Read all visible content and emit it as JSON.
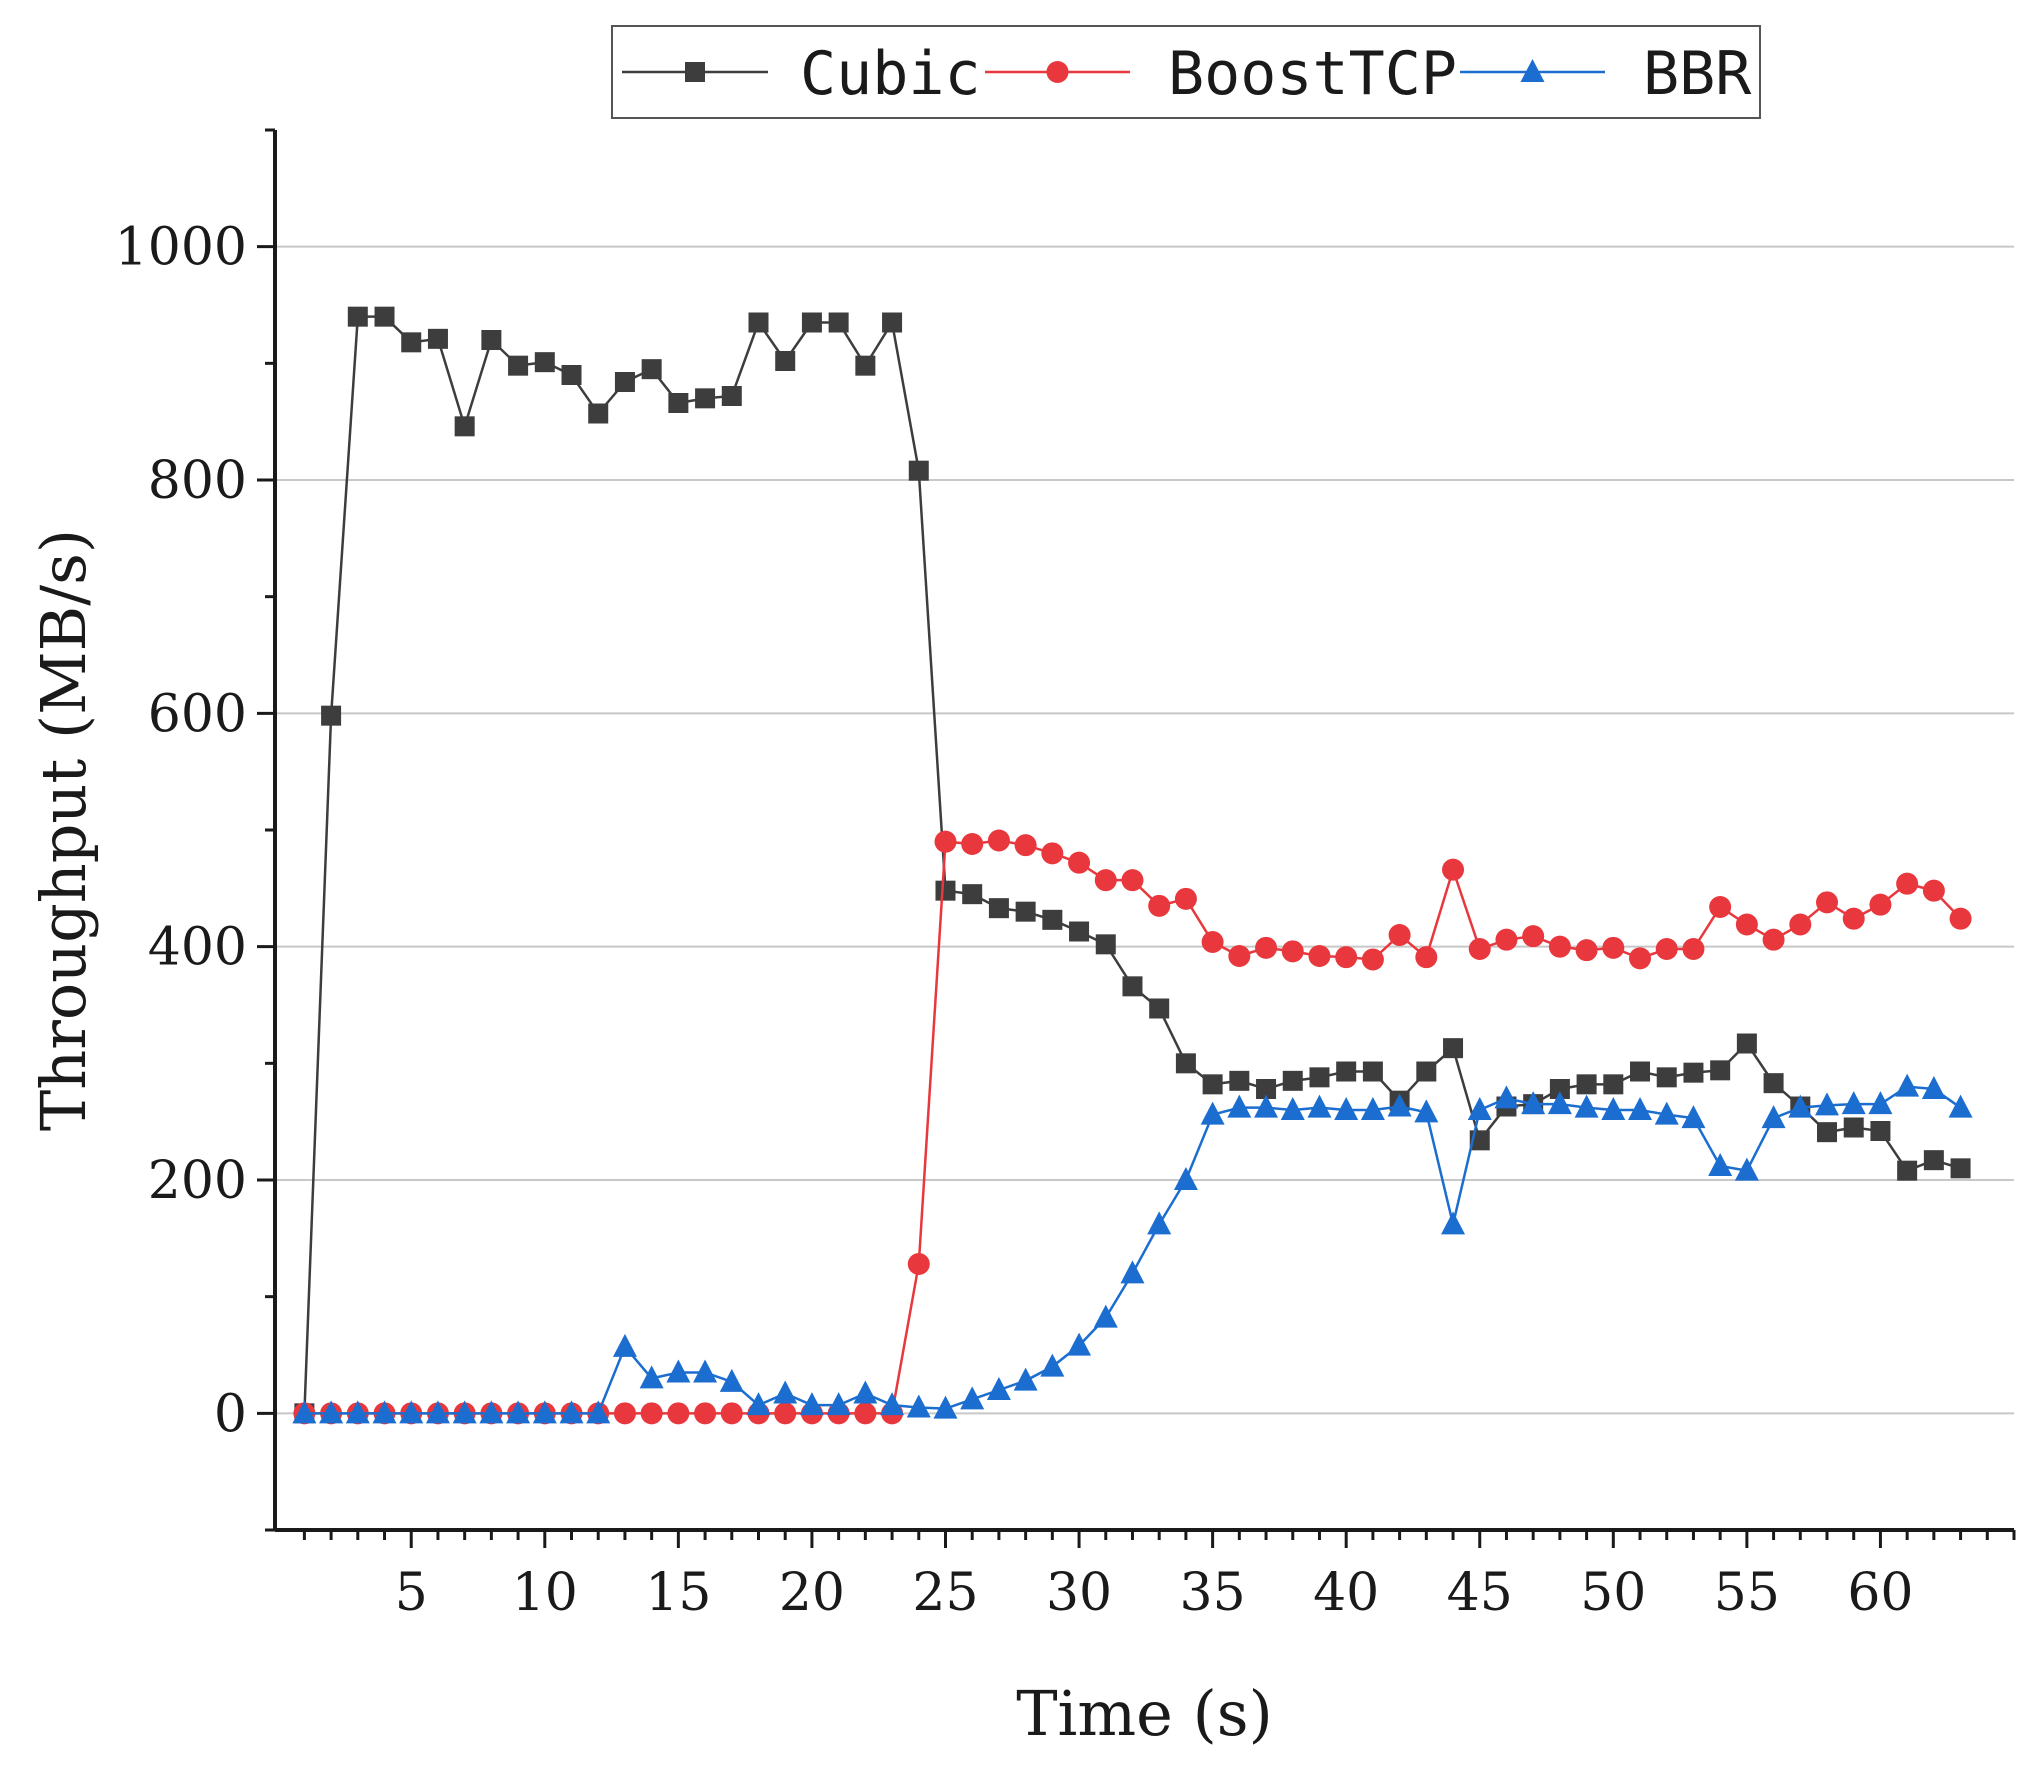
{
  "chart_data": {
    "type": "line",
    "title": "",
    "xlabel": "Time (s)",
    "ylabel": "Throughput (MB/s)",
    "xlim": [
      -0.1,
      65
    ],
    "ylim": [
      -100,
      1100
    ],
    "xticks": [
      5,
      10,
      15,
      20,
      25,
      30,
      35,
      40,
      45,
      50,
      55,
      60
    ],
    "yticks": [
      0,
      200,
      400,
      600,
      800,
      1000
    ],
    "grid": "horizontal",
    "legend_position": "top",
    "x": [
      1,
      2,
      3,
      4,
      5,
      6,
      7,
      8,
      9,
      10,
      11,
      12,
      13,
      14,
      15,
      16,
      17,
      18,
      19,
      20,
      21,
      22,
      23,
      24,
      25,
      26,
      27,
      28,
      29,
      30,
      31,
      32,
      33,
      34,
      35,
      36,
      37,
      38,
      39,
      40,
      41,
      42,
      43,
      44,
      45,
      46,
      47,
      48,
      49,
      50,
      51,
      52,
      53,
      54,
      55,
      56,
      57,
      58,
      59,
      60,
      61,
      62,
      63
    ],
    "series": [
      {
        "name": "Cubic",
        "color": "#3d3d3d",
        "marker": "square",
        "values": [
          0,
          598,
          940,
          940,
          918,
          921,
          846,
          920,
          898,
          901,
          890,
          857,
          884,
          895,
          866,
          870,
          872,
          935,
          902,
          935,
          935,
          898,
          935,
          808,
          448,
          445,
          433,
          430,
          423,
          413,
          402,
          366,
          347,
          300,
          282,
          285,
          278,
          285,
          288,
          293,
          293,
          268,
          293,
          313,
          234,
          263,
          265,
          278,
          282,
          282,
          293,
          288,
          292,
          294,
          317,
          283,
          263,
          241,
          245,
          242,
          208,
          217,
          210
        ]
      },
      {
        "name": "BoostTCP",
        "color": "#e8383d",
        "marker": "circle",
        "values": [
          0,
          0,
          0,
          0,
          0,
          0,
          0,
          0,
          0,
          0,
          0,
          0,
          0,
          0,
          0,
          0,
          0,
          0,
          0,
          0,
          0,
          0,
          0,
          128,
          490,
          488,
          491,
          487,
          480,
          472,
          457,
          457,
          435,
          441,
          404,
          392,
          399,
          396,
          392,
          391,
          389,
          410,
          391,
          466,
          398,
          406,
          409,
          400,
          397,
          399,
          390,
          398,
          398,
          434,
          419,
          406,
          419,
          438,
          424,
          436,
          454,
          448,
          424
        ]
      },
      {
        "name": "BBR",
        "color": "#1c6dd0",
        "marker": "triangle",
        "values": [
          0,
          0,
          0,
          0,
          0,
          0,
          0,
          0,
          0,
          0,
          0,
          0,
          57,
          30,
          35,
          35,
          27,
          7,
          17,
          7,
          7,
          17,
          7,
          5,
          4,
          12,
          20,
          28,
          40,
          58,
          82,
          120,
          162,
          200,
          256,
          262,
          262,
          260,
          262,
          260,
          260,
          263,
          258,
          162,
          260,
          270,
          265,
          265,
          262,
          260,
          260,
          256,
          253,
          212,
          208,
          253,
          262,
          264,
          265,
          265,
          280,
          278,
          262
        ]
      }
    ]
  }
}
